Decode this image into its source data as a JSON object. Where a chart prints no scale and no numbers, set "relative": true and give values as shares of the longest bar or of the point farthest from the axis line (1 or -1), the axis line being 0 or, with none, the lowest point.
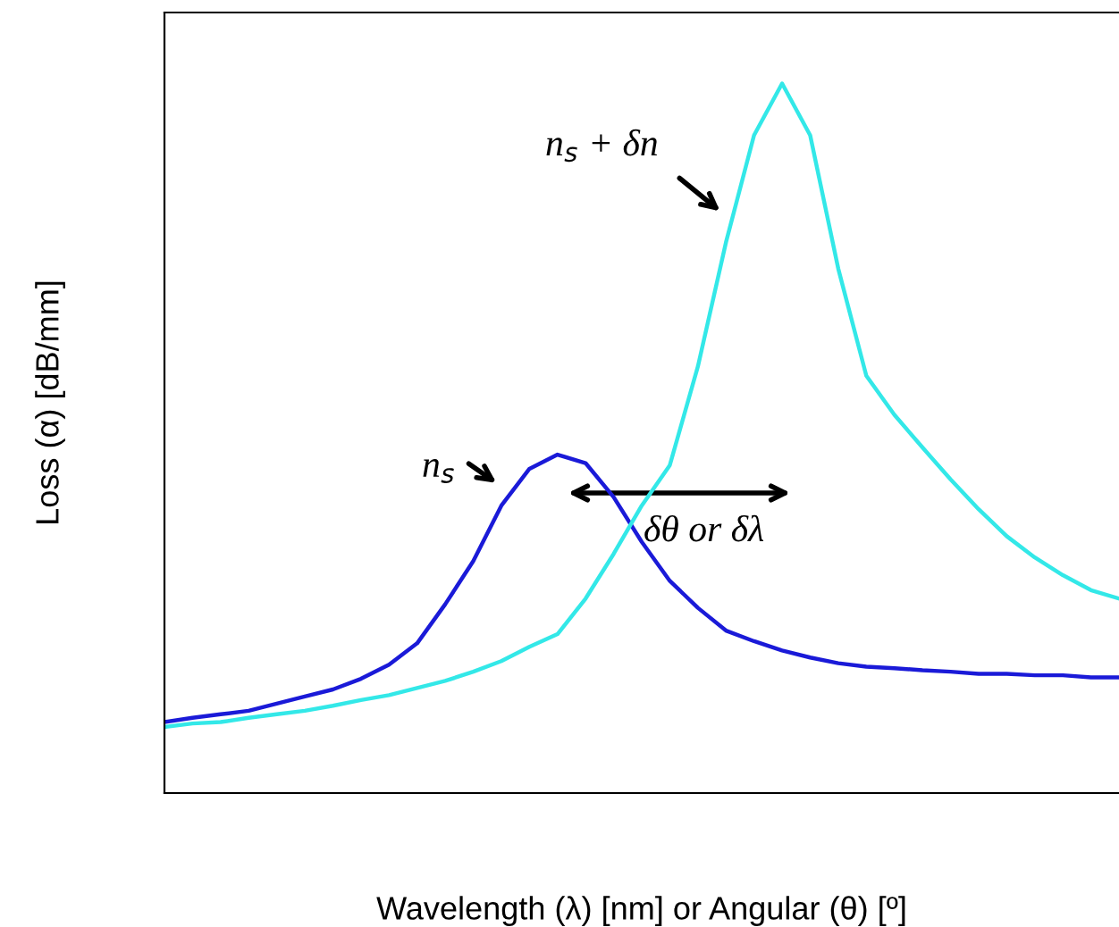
{
  "chart_data": {
    "type": "line",
    "relative": true,
    "xlabel": "Wavelength (λ) [nm] or Angular (θ) [º]",
    "ylabel": "Loss (α) [dB/mm]",
    "categories": [
      null,
      null,
      null,
      null,
      null,
      null,
      null,
      null,
      null,
      null,
      null,
      null,
      null,
      null,
      null,
      null,
      null,
      null,
      null,
      null,
      null,
      null,
      null,
      null,
      null,
      null,
      null,
      null,
      null,
      null,
      null,
      null,
      null,
      null,
      null
    ],
    "series": [
      {
        "color": "#1a1ad8",
        "values": [
          0.1,
          0.106,
          0.111,
          0.116,
          0.126,
          0.136,
          0.146,
          0.161,
          0.181,
          0.211,
          0.266,
          0.327,
          0.405,
          0.457,
          0.477,
          0.465,
          0.417,
          0.354,
          0.299,
          0.261,
          0.229,
          0.214,
          0.201,
          0.191,
          0.183,
          0.178,
          0.176,
          0.173,
          0.171,
          0.168,
          0.168,
          0.166,
          0.166,
          0.163,
          0.163
        ]
      },
      {
        "color": "#33e8e8",
        "values": [
          0.093,
          0.098,
          0.1,
          0.106,
          0.111,
          0.116,
          0.123,
          0.131,
          0.138,
          0.148,
          0.158,
          0.171,
          0.186,
          0.206,
          0.224,
          0.274,
          0.337,
          0.405,
          0.462,
          0.601,
          0.776,
          0.927,
          1.0,
          0.927,
          0.739,
          0.588,
          0.533,
          0.487,
          0.442,
          0.4,
          0.362,
          0.332,
          0.307,
          0.286,
          0.274
        ]
      }
    ],
    "annotations": [
      "n$_{s}$ + δn",
      "n$_{s}$",
      "δθ or δλ"
    ],
    "grid": false,
    "legend": false,
    "marker": "none",
    "line_style": "solid"
  }
}
